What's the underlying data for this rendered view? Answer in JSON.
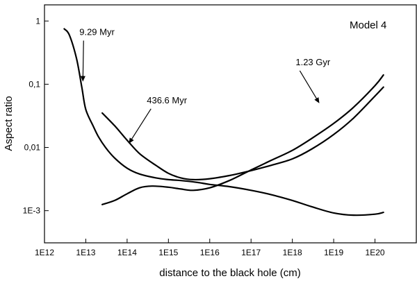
{
  "chart_data": {
    "type": "line",
    "title": "",
    "xlabel": "distance to the black hole (cm)",
    "ylabel": "Aspect ratio",
    "xscale": "log",
    "yscale": "log",
    "xlim": [
      1000000000000.0,
      1e+21
    ],
    "ylim": [
      0.00031,
      1.8
    ],
    "xticks": [
      {
        "value": 1000000000000.0,
        "label": "1E12"
      },
      {
        "value": 10000000000000.0,
        "label": "1E13"
      },
      {
        "value": 100000000000000.0,
        "label": "1E14"
      },
      {
        "value": 1000000000000000.0,
        "label": "1E15"
      },
      {
        "value": 1e+16,
        "label": "1E16"
      },
      {
        "value": 1e+17,
        "label": "1E17"
      },
      {
        "value": 1e+18,
        "label": "1E18"
      },
      {
        "value": 1e+19,
        "label": "1E19"
      },
      {
        "value": 1e+20,
        "label": "1E20"
      }
    ],
    "yticks": [
      {
        "value": 0.001,
        "label": "1E-3"
      },
      {
        "value": 0.01,
        "label": "0,01"
      },
      {
        "value": 0.1,
        "label": "0,1"
      },
      {
        "value": 1,
        "label": "1"
      }
    ],
    "grid": false,
    "legend": "none",
    "annotation_text": "Model 4",
    "series": [
      {
        "name": "9.29 Myr",
        "x": [
          3000000000000.0,
          4000000000000.0,
          6000000000000.0,
          8000000000000.0,
          10000000000000.0,
          15000000000000.0,
          20000000000000.0,
          30000000000000.0,
          50000000000000.0,
          100000000000000.0,
          200000000000000.0,
          500000000000000.0,
          1000000000000000.0,
          2000000000000000.0,
          5000000000000000.0,
          1e+16,
          3e+16,
          1e+17,
          3e+17,
          1e+18,
          3e+18,
          1e+19,
          3e+19,
          1e+20,
          1.6e+20
        ],
        "y": [
          0.75,
          0.6,
          0.25,
          0.09,
          0.04,
          0.022,
          0.015,
          0.01,
          0.0068,
          0.0047,
          0.0038,
          0.0033,
          0.0031,
          0.003,
          0.0028,
          0.0026,
          0.0024,
          0.0021,
          0.0018,
          0.00145,
          0.00115,
          0.00092,
          0.00085,
          0.00088,
          0.00094
        ]
      },
      {
        "name": "436.6 Myr",
        "x": [
          25000000000000.0,
          50000000000000.0,
          100000000000000.0,
          200000000000000.0,
          500000000000000.0,
          1000000000000000.0,
          2000000000000000.0,
          4000000000000000.0,
          1e+16,
          3e+16,
          1e+17,
          3e+17,
          1e+18,
          3e+18,
          1e+19,
          3e+19,
          1e+20,
          1.6e+20
        ],
        "y": [
          0.035,
          0.022,
          0.013,
          0.008,
          0.0052,
          0.0039,
          0.0033,
          0.0031,
          0.0032,
          0.0036,
          0.0043,
          0.0052,
          0.0066,
          0.0095,
          0.016,
          0.029,
          0.065,
          0.09
        ]
      },
      {
        "name": "1.23 Gyr",
        "x": [
          25000000000000.0,
          50000000000000.0,
          100000000000000.0,
          200000000000000.0,
          400000000000000.0,
          1000000000000000.0,
          2000000000000000.0,
          4000000000000000.0,
          1e+16,
          3e+16,
          1e+17,
          3e+17,
          1e+18,
          3e+18,
          1e+19,
          3e+19,
          1e+20,
          1.6e+20
        ],
        "y": [
          0.00125,
          0.00145,
          0.00185,
          0.0023,
          0.00245,
          0.00235,
          0.0022,
          0.0021,
          0.0023,
          0.003,
          0.0044,
          0.0062,
          0.009,
          0.014,
          0.024,
          0.043,
          0.095,
          0.14
        ]
      }
    ],
    "annotations": [
      {
        "text": "9.29 Myr",
        "label_x": 7000000000000.0,
        "label_y": 0.6,
        "tip_x": 8500000000000.0,
        "tip_y": 0.11
      },
      {
        "text": "436.6 Myr",
        "label_x": 300000000000000.0,
        "label_y": 0.05,
        "tip_x": 110000000000000.0,
        "tip_y": 0.0115
      },
      {
        "text": "1.23 Gyr",
        "label_x": 1.2e+18,
        "label_y": 0.2,
        "tip_x": 4.5e+18,
        "tip_y": 0.05
      }
    ]
  }
}
